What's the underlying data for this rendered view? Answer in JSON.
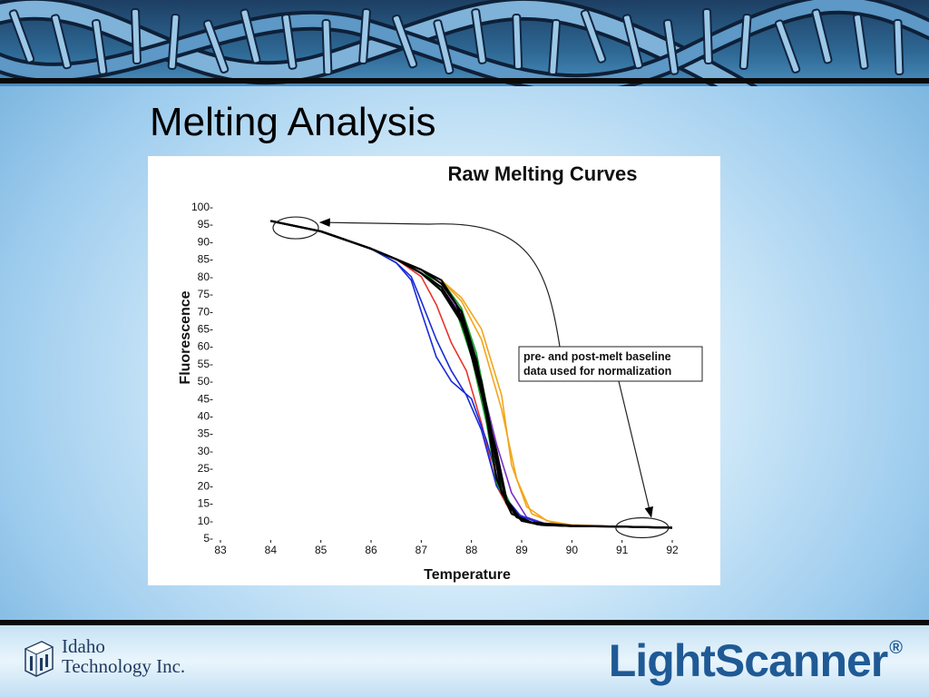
{
  "slide": {
    "title": "Melting Analysis"
  },
  "footer": {
    "company": "Idaho\nTechnology Inc.",
    "product": "LightScanner",
    "product_mark": "®"
  },
  "colors": {
    "banner": "#2e6894",
    "product_text": "#1f5a95",
    "series_black": "#000000",
    "series_blue": "#1a2bd6",
    "series_red": "#e8352b",
    "series_green": "#14a02a",
    "series_orange": "#f2a51a",
    "series_purple": "#7a2ec8"
  },
  "chart_data": {
    "type": "line",
    "title": "Raw Melting Curves",
    "xlabel": "Temperature",
    "ylabel": "Fluorescence",
    "xlim": [
      83,
      92
    ],
    "ylim": [
      5,
      100
    ],
    "x_ticks": [
      "83",
      "84",
      "85",
      "86",
      "87",
      "88",
      "89",
      "90",
      "91",
      "92"
    ],
    "y_ticks": [
      "5",
      "10",
      "15",
      "20",
      "25",
      "30",
      "35",
      "40",
      "45",
      "50",
      "55",
      "60",
      "65",
      "70",
      "75",
      "80",
      "85",
      "90",
      "95",
      "100"
    ],
    "grid": false,
    "annotation": {
      "text": [
        "pre- and post-melt baseline",
        "data used for normalization"
      ],
      "pre_melt_region": {
        "x": 84.5,
        "y": 94
      },
      "post_melt_region": {
        "x": 91.4,
        "y": 8
      }
    },
    "series": [
      {
        "color": "black",
        "x": [
          84,
          85,
          86,
          86.5,
          87,
          87.4,
          87.8,
          88.1,
          88.4,
          88.6,
          88.9,
          89.3,
          90,
          91,
          92
        ],
        "y": [
          96,
          93,
          88,
          85,
          82,
          78,
          70,
          56,
          34,
          18,
          11,
          9,
          8.5,
          8.3,
          8
        ]
      },
      {
        "color": "black",
        "x": [
          84,
          85,
          86,
          86.5,
          87,
          87.4,
          87.8,
          88.1,
          88.5,
          88.7,
          89,
          89.4,
          90,
          91,
          92
        ],
        "y": [
          96,
          93,
          88,
          85,
          81,
          77,
          68,
          52,
          30,
          16,
          10,
          8.8,
          8.5,
          8.3,
          8
        ]
      },
      {
        "color": "black",
        "x": [
          84,
          85,
          86,
          86.5,
          87,
          87.4,
          87.7,
          88,
          88.3,
          88.5,
          88.8,
          89.2,
          90,
          91,
          92
        ],
        "y": [
          96,
          93,
          88,
          85,
          82,
          79,
          72,
          60,
          40,
          22,
          12,
          9.5,
          8.6,
          8.3,
          8
        ]
      },
      {
        "color": "black",
        "x": [
          84,
          85,
          86,
          86.5,
          87,
          87.4,
          87.8,
          88.2,
          88.5,
          88.7,
          89,
          89.4,
          90,
          91,
          92
        ],
        "y": [
          96,
          93,
          88,
          85,
          81,
          76,
          67,
          50,
          28,
          15,
          10,
          8.8,
          8.5,
          8.3,
          8
        ]
      },
      {
        "color": "blue",
        "x": [
          84,
          85,
          86,
          86.5,
          86.8,
          87,
          87.3,
          87.6,
          88,
          88.3,
          88.6,
          89,
          89.5,
          90,
          91,
          92
        ],
        "y": [
          96,
          93,
          88,
          84,
          79,
          70,
          57,
          50,
          45,
          33,
          18,
          11,
          9,
          8.5,
          8.3,
          8
        ]
      },
      {
        "color": "blue",
        "x": [
          84,
          85,
          86,
          86.5,
          86.8,
          87,
          87.3,
          87.6,
          87.9,
          88.2,
          88.5,
          88.9,
          89.4,
          90,
          91,
          92
        ],
        "y": [
          96,
          93,
          88,
          84,
          80,
          73,
          62,
          53,
          46,
          36,
          20,
          12,
          9,
          8.5,
          8.3,
          8
        ]
      },
      {
        "color": "red",
        "x": [
          84,
          85,
          86,
          86.5,
          87,
          87.3,
          87.6,
          87.9,
          88.2,
          88.5,
          88.8,
          89.2,
          90,
          91,
          92
        ],
        "y": [
          96,
          93,
          88,
          85,
          80,
          72,
          61,
          53,
          38,
          20,
          12,
          9.5,
          8.6,
          8.3,
          8
        ]
      },
      {
        "color": "green",
        "x": [
          84,
          85,
          86,
          86.5,
          87,
          87.4,
          87.8,
          88.1,
          88.4,
          88.6,
          88.9,
          89.3,
          90,
          91,
          92
        ],
        "y": [
          96,
          93,
          88,
          85,
          82,
          79,
          71,
          58,
          36,
          20,
          11,
          9,
          8.5,
          8.3,
          8
        ]
      },
      {
        "color": "green",
        "x": [
          84,
          85,
          86,
          86.5,
          87,
          87.3,
          87.7,
          88,
          88.3,
          88.5,
          88.8,
          89.2,
          90,
          91,
          92
        ],
        "y": [
          96,
          93,
          88,
          85,
          82,
          78,
          70,
          57,
          38,
          21,
          12,
          9.5,
          8.6,
          8.3,
          8
        ]
      },
      {
        "color": "orange",
        "x": [
          84,
          85,
          86,
          86.5,
          87,
          87.4,
          87.8,
          88.2,
          88.6,
          88.9,
          89.2,
          89.6,
          90,
          91,
          92
        ],
        "y": [
          96,
          93,
          88,
          85,
          82,
          79,
          73,
          62,
          42,
          22,
          12,
          9.5,
          8.8,
          8.3,
          8
        ]
      },
      {
        "color": "orange",
        "x": [
          84,
          85,
          86,
          86.5,
          87,
          87.4,
          87.8,
          88.2,
          88.6,
          88.8,
          89.1,
          89.5,
          90,
          91,
          92
        ],
        "y": [
          96,
          93,
          88,
          85,
          82,
          79,
          74,
          65,
          46,
          26,
          14,
          10,
          8.8,
          8.3,
          8
        ]
      },
      {
        "color": "purple",
        "x": [
          84,
          85,
          86,
          86.5,
          87,
          87.4,
          87.8,
          88.1,
          88.5,
          88.8,
          89.1,
          89.5,
          90,
          91,
          92
        ],
        "y": [
          96,
          93,
          88,
          85,
          81,
          77,
          69,
          55,
          32,
          18,
          11,
          9,
          8.5,
          8.3,
          8
        ]
      }
    ]
  }
}
